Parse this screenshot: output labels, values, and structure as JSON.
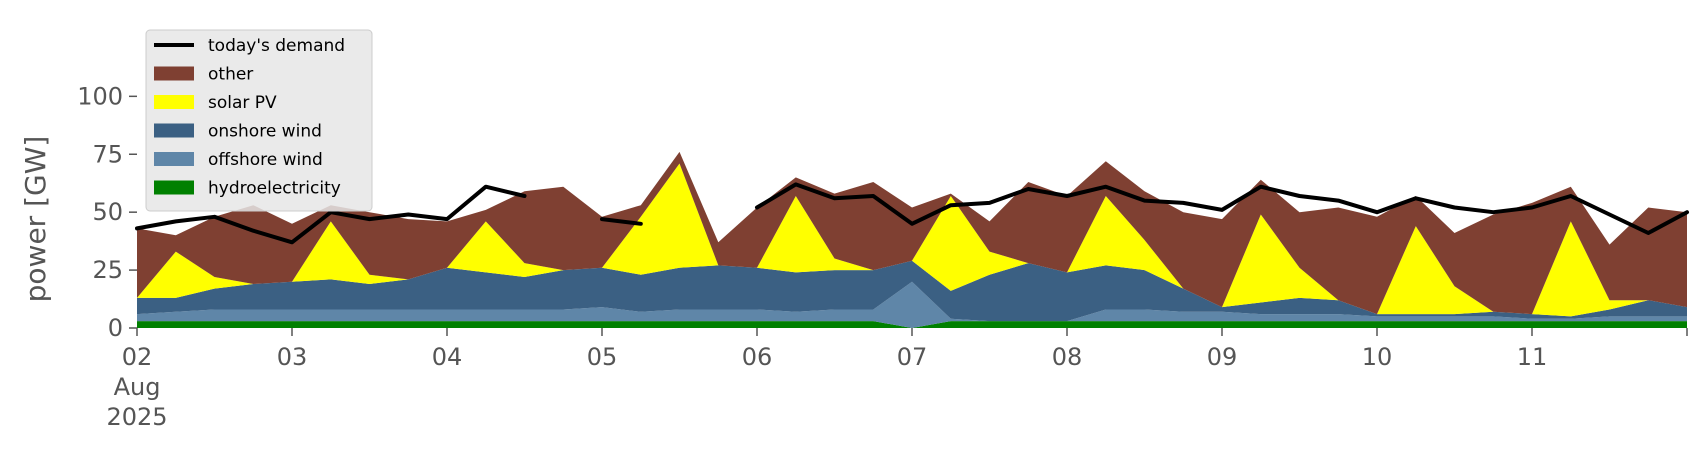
{
  "chart_data": {
    "type": "area",
    "title": "",
    "xlabel": "",
    "ylabel": "power [GW]",
    "ylim": [
      0,
      120
    ],
    "yticks": [
      0,
      25,
      50,
      75,
      100
    ],
    "xlim": [
      "2025-08-02",
      "2025-08-12"
    ],
    "x_tick_labels": [
      {
        "date": "2025-08-02",
        "lines": [
          "02",
          "Aug",
          "2025"
        ]
      },
      {
        "date": "2025-08-03",
        "lines": [
          "03"
        ]
      },
      {
        "date": "2025-08-04",
        "lines": [
          "04"
        ]
      },
      {
        "date": "2025-08-05",
        "lines": [
          "05"
        ]
      },
      {
        "date": "2025-08-06",
        "lines": [
          "06"
        ]
      },
      {
        "date": "2025-08-07",
        "lines": [
          "07"
        ]
      },
      {
        "date": "2025-08-08",
        "lines": [
          "08"
        ]
      },
      {
        "date": "2025-08-09",
        "lines": [
          "09"
        ]
      },
      {
        "date": "2025-08-10",
        "lines": [
          "10"
        ]
      },
      {
        "date": "2025-08-11",
        "lines": [
          "11"
        ]
      }
    ],
    "grid": false,
    "stacked": true,
    "legend_position": "top-left",
    "x_days": [
      0,
      0.25,
      0.5,
      0.75,
      1,
      1.25,
      1.5,
      1.75,
      2,
      2.25,
      2.5,
      2.75,
      3,
      3.25,
      3.5,
      3.75,
      4,
      4.25,
      4.5,
      4.75,
      5,
      5.25,
      5.5,
      5.75,
      6,
      6.25,
      6.5,
      6.75,
      7,
      7.25,
      7.5,
      7.75,
      8,
      8.25,
      8.5,
      8.75,
      9,
      9.25,
      9.5,
      9.75,
      10
    ],
    "series": [
      {
        "name": "hydroelectricity",
        "color": "#008000",
        "values": [
          3,
          3,
          3,
          3,
          3,
          3,
          3,
          3,
          3,
          3,
          3,
          3,
          3,
          3,
          3,
          3,
          3,
          3,
          3,
          3,
          0,
          3,
          3,
          3,
          3,
          3,
          3,
          3,
          3,
          3,
          3,
          3,
          3,
          3,
          3,
          3,
          3,
          3,
          3,
          3,
          3
        ]
      },
      {
        "name": "offshore wind",
        "color": "#5f86a8",
        "values": [
          3,
          4,
          5,
          5,
          5,
          5,
          5,
          5,
          5,
          5,
          5,
          5,
          6,
          4,
          5,
          5,
          5,
          4,
          5,
          5,
          20,
          1,
          0,
          0,
          0,
          5,
          5,
          4,
          4,
          3,
          3,
          3,
          2,
          2,
          2,
          2,
          1,
          1,
          2,
          2,
          2
        ]
      },
      {
        "name": "onshore wind",
        "color": "#3b6083",
        "values": [
          7,
          6,
          9,
          11,
          12,
          13,
          11,
          13,
          18,
          16,
          14,
          17,
          17,
          16,
          18,
          19,
          18,
          17,
          17,
          17,
          9,
          12,
          20,
          25,
          21,
          19,
          17,
          10,
          2,
          5,
          7,
          6,
          1,
          1,
          1,
          2,
          2,
          1,
          3,
          7,
          4
        ]
      },
      {
        "name": "solar PV",
        "color": "#ffff00",
        "values": [
          0,
          20,
          5,
          0,
          0,
          25,
          4,
          0,
          0,
          22,
          6,
          0,
          0,
          25,
          45,
          0,
          0,
          33,
          5,
          0,
          0,
          41,
          10,
          0,
          0,
          30,
          13,
          0,
          0,
          38,
          13,
          0,
          0,
          38,
          12,
          0,
          0,
          41,
          4,
          0,
          0
        ]
      },
      {
        "name": "other",
        "color": "#7f4032",
        "values": [
          30,
          7,
          26,
          34,
          25,
          7,
          27,
          26,
          20,
          5,
          31,
          36,
          22,
          5,
          5,
          10,
          26,
          8,
          28,
          38,
          23,
          1,
          13,
          35,
          33,
          15,
          21,
          33,
          38,
          15,
          24,
          40,
          42,
          13,
          23,
          42,
          48,
          15,
          24,
          40,
          41
        ]
      }
    ],
    "demand_series": {
      "name": "today's demand",
      "color": "#000000",
      "values": [
        43,
        46,
        48,
        42,
        37,
        50,
        47,
        49,
        47,
        61,
        57,
        58,
        47,
        45,
        52,
        54,
        52,
        62,
        56,
        57,
        45,
        53,
        54,
        60,
        57,
        61,
        55,
        54,
        51,
        61,
        57,
        55,
        50,
        56,
        52,
        50,
        52,
        57,
        49,
        41,
        50
      ],
      "gaps_days": [
        [
          2.6,
          2.9
        ],
        [
          3.3,
          3.95
        ]
      ]
    },
    "legend_order": [
      "today's demand",
      "other",
      "solar PV",
      "onshore wind",
      "offshore wind",
      "hydroelectricity"
    ]
  }
}
